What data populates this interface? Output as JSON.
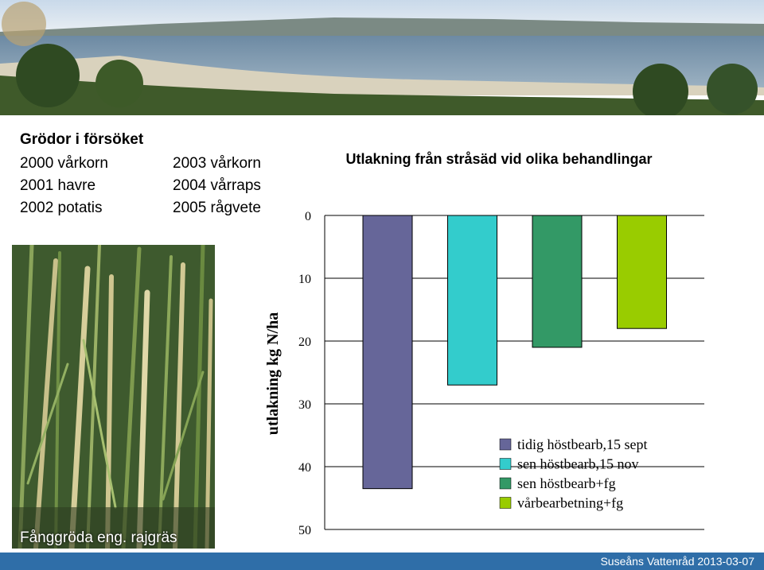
{
  "crops": {
    "heading": "Grödor i försöket",
    "left": [
      "2000 vårkorn",
      "2001 havre",
      "2002 potatis"
    ],
    "right": [
      "2003 vårkorn",
      "2004 vårraps",
      "2005 rågvete"
    ]
  },
  "photo_caption": "Fånggröda eng. rajgräs",
  "footer_text": "Suseåns Vattenråd 2013-03-07",
  "chart_data": {
    "type": "bar",
    "title": "Utlakning från stråsäd vid olika behandlingar",
    "xlabel": "",
    "ylabel": "utlakning kg N/ha",
    "ylim": [
      0,
      50
    ],
    "yticks": [
      0,
      10,
      20,
      30,
      40,
      50
    ],
    "y_inverted": true,
    "grid": true,
    "legend_position": "bottom-right",
    "series": [
      {
        "name": "tidig höstbearb,15 sept",
        "value": 43.5,
        "color": "#666699"
      },
      {
        "name": "sen höstbearb,15 nov",
        "value": 27,
        "color": "#33cccc"
      },
      {
        "name": "sen höstbearb+fg",
        "value": 21,
        "color": "#339966"
      },
      {
        "name": "vårbearbetning+fg",
        "value": 18,
        "color": "#99cc00"
      }
    ]
  }
}
